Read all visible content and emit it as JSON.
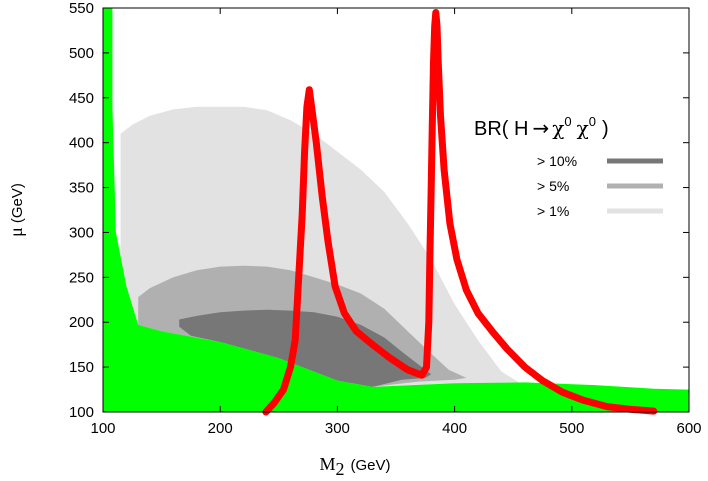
{
  "chart_data": {
    "type": "area",
    "xlabel": "M",
    "xlabel_sub": "2",
    "xunit": "(GeV)",
    "ylabel": "μ",
    "yunit": "(GeV)",
    "xlim": [
      100,
      600
    ],
    "ylim": [
      100,
      550
    ],
    "xticks": [
      "100",
      "200",
      "300",
      "400",
      "500",
      "600"
    ],
    "yticks": [
      "100",
      "150",
      "200",
      "250",
      "300",
      "350",
      "400",
      "450",
      "500",
      "550"
    ],
    "grid": false,
    "legend": {
      "position": "right",
      "title": "BR( H → χ⁰ χ⁰ )",
      "title_parts": {
        "pre": "BR( H",
        "arrow": "→",
        "chi": "χ",
        "sup": "0",
        "post": ")"
      },
      "entries": [
        {
          "label": "> 10%",
          "color": "#777777"
        },
        {
          "label": ">  5%",
          "color": "#b0b0b0"
        },
        {
          "label": ">  1%",
          "color": "#e2e2e2"
        }
      ]
    },
    "colors": {
      "excluded": "#00ff00",
      "curve": "#ff0000"
    },
    "regions": [
      {
        "name": "BR > 1%",
        "color": "#e2e2e2",
        "points": [
          [
            115,
            410
          ],
          [
            125,
            420
          ],
          [
            140,
            430
          ],
          [
            160,
            437
          ],
          [
            180,
            440
          ],
          [
            200,
            440
          ],
          [
            220,
            440
          ],
          [
            240,
            436
          ],
          [
            260,
            425
          ],
          [
            280,
            410
          ],
          [
            300,
            390
          ],
          [
            320,
            370
          ],
          [
            340,
            345
          ],
          [
            360,
            310
          ],
          [
            380,
            270
          ],
          [
            400,
            220
          ],
          [
            420,
            180
          ],
          [
            440,
            145
          ],
          [
            455,
            133
          ],
          [
            430,
            132
          ],
          [
            400,
            132
          ],
          [
            360,
            130
          ],
          [
            330,
            128
          ],
          [
            300,
            135
          ],
          [
            250,
            160
          ],
          [
            200,
            178
          ],
          [
            150,
            190
          ],
          [
            130,
            197
          ],
          [
            120,
            215
          ],
          [
            115,
            260
          ]
        ]
      },
      {
        "name": "BR > 5%",
        "color": "#b0b0b0",
        "points": [
          [
            130,
            228
          ],
          [
            140,
            238
          ],
          [
            160,
            250
          ],
          [
            180,
            258
          ],
          [
            200,
            262
          ],
          [
            220,
            263
          ],
          [
            240,
            262
          ],
          [
            260,
            258
          ],
          [
            280,
            250
          ],
          [
            300,
            242
          ],
          [
            320,
            232
          ],
          [
            340,
            215
          ],
          [
            360,
            190
          ],
          [
            380,
            165
          ],
          [
            395,
            147
          ],
          [
            410,
            138
          ],
          [
            400,
            136
          ],
          [
            370,
            134
          ],
          [
            330,
            128
          ],
          [
            300,
            135
          ],
          [
            250,
            160
          ],
          [
            200,
            178
          ],
          [
            150,
            190
          ],
          [
            130,
            197
          ]
        ]
      },
      {
        "name": "BR > 10%",
        "color": "#777777",
        "points": [
          [
            165,
            203
          ],
          [
            180,
            207
          ],
          [
            200,
            211
          ],
          [
            220,
            213
          ],
          [
            240,
            214
          ],
          [
            260,
            213
          ],
          [
            280,
            211
          ],
          [
            300,
            206
          ],
          [
            320,
            197
          ],
          [
            340,
            183
          ],
          [
            355,
            167
          ],
          [
            370,
            152
          ],
          [
            380,
            142
          ],
          [
            375,
            138
          ],
          [
            355,
            136
          ],
          [
            330,
            128
          ],
          [
            300,
            135
          ],
          [
            250,
            160
          ],
          [
            200,
            178
          ],
          [
            175,
            185
          ],
          [
            165,
            195
          ]
        ]
      },
      {
        "name": "green region",
        "color": "#00ff00",
        "points": [
          [
            100,
            550
          ],
          [
            108,
            550
          ],
          [
            108,
            440
          ],
          [
            111,
            300
          ],
          [
            120,
            240
          ],
          [
            130,
            197
          ],
          [
            150,
            190
          ],
          [
            200,
            178
          ],
          [
            250,
            160
          ],
          [
            300,
            135
          ],
          [
            330,
            128
          ],
          [
            400,
            132
          ],
          [
            460,
            133
          ],
          [
            520,
            130
          ],
          [
            570,
            126
          ],
          [
            600,
            125
          ],
          [
            600,
            100
          ],
          [
            100,
            100
          ]
        ]
      }
    ],
    "curves": [
      {
        "name": "red curve",
        "color": "#ff0000",
        "points": [
          [
            239,
            100
          ],
          [
            246,
            110
          ],
          [
            254,
            125
          ],
          [
            260,
            150
          ],
          [
            264,
            180
          ],
          [
            267,
            250
          ],
          [
            270,
            320
          ],
          [
            272,
            390
          ],
          [
            274,
            440
          ],
          [
            276,
            459
          ],
          [
            278,
            440
          ],
          [
            282,
            400
          ],
          [
            287,
            340
          ],
          [
            292,
            290
          ],
          [
            298,
            240
          ],
          [
            306,
            210
          ],
          [
            316,
            190
          ],
          [
            330,
            175
          ],
          [
            345,
            160
          ],
          [
            360,
            147
          ],
          [
            372,
            141
          ],
          [
            376,
            150
          ],
          [
            378,
            200
          ],
          [
            379,
            280
          ],
          [
            380,
            350
          ],
          [
            381,
            420
          ],
          [
            382,
            490
          ],
          [
            383,
            530
          ],
          [
            384,
            545
          ],
          [
            385,
            530
          ],
          [
            386,
            490
          ],
          [
            388,
            430
          ],
          [
            391,
            370
          ],
          [
            396,
            310
          ],
          [
            402,
            270
          ],
          [
            410,
            236
          ],
          [
            420,
            210
          ],
          [
            432,
            190
          ],
          [
            445,
            170
          ],
          [
            460,
            150
          ],
          [
            475,
            135
          ],
          [
            492,
            122
          ],
          [
            510,
            113
          ],
          [
            530,
            106
          ],
          [
            550,
            103
          ],
          [
            570,
            101
          ]
        ]
      }
    ]
  }
}
